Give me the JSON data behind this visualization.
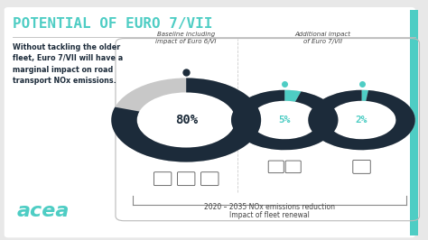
{
  "title": "POTENTIAL OF EURO 7/VII",
  "title_color": "#4ecdc4",
  "bg_color": "#e8e8e8",
  "left_text_bold": "Without tackling the older\nfleet, Euro 7/VII will have a\nmarginal impact on road\ntransport NOx emissions.",
  "donut1": {
    "label": "Baseline including\nimpact of Euro 6/VI",
    "value": 80,
    "pct_text": "80%",
    "filled_color": "#1c2b3a",
    "empty_color": "#c8c8c8",
    "pct_color": "#1c2b3a",
    "dot_color": "#1c2b3a"
  },
  "donut2": {
    "label": "Additional impact\nof Euro 7/VII",
    "value": 5,
    "pct_text": "5%",
    "filled_color": "#1c2b3a",
    "light_color": "#4ecdc4",
    "empty_color": "#c8c8c8",
    "pct_color": "#4ecdc4",
    "dot_color": "#4ecdc4"
  },
  "donut3": {
    "label": "",
    "value": 2,
    "pct_text": "2%",
    "filled_color": "#1c2b3a",
    "light_color": "#4ecdc4",
    "empty_color": "#c8c8c8",
    "pct_color": "#4ecdc4",
    "dot_color": "#4ecdc4"
  },
  "bottom_label1": "2020 – 2035 NOx emissions reduction",
  "bottom_label2": "Impact of fleet renewal",
  "separator_color": "#bbbbbb",
  "dark_color": "#1c2b3a",
  "cyan_color": "#4ecdc4",
  "acea_color": "#4ecdc4",
  "font_color": "#444444",
  "white": "#ffffff",
  "d1x": 0.435,
  "d1y": 0.5,
  "d2x": 0.665,
  "d2y": 0.5,
  "d3x": 0.845,
  "d3y": 0.5,
  "r_out1": 0.175,
  "r_in1": 0.115,
  "r_out2": 0.125,
  "r_in2": 0.08
}
